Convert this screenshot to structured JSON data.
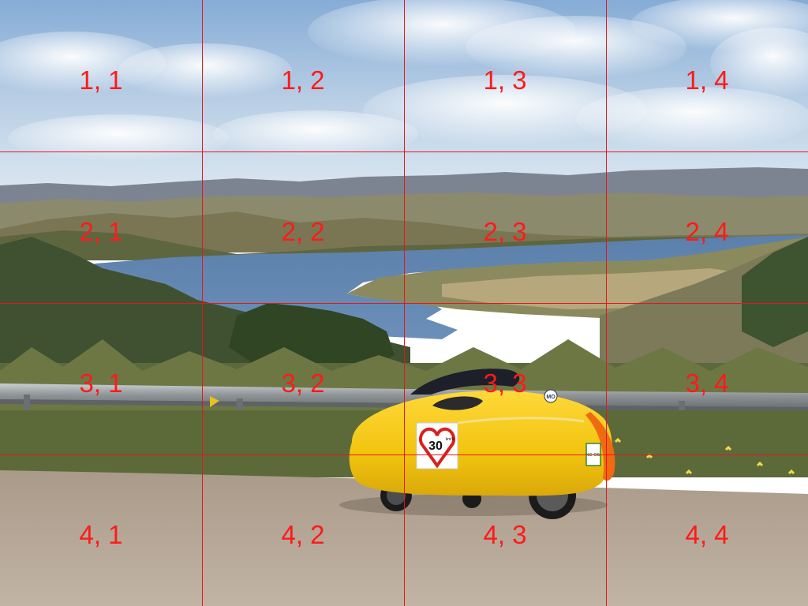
{
  "scene": {
    "description_icons": [
      "sky",
      "clouds",
      "distant-hills",
      "lake",
      "shrubland",
      "guardrail",
      "velomobile",
      "gravel-road"
    ],
    "colors": {
      "sky_top": "#8fb3d9",
      "sky_bottom": "#dfe9f2",
      "lake": "#5d82ad",
      "hills_far": "#7b8290",
      "vegetation": "#4a5a32",
      "velomobile_body": "#f2c40f",
      "velomobile_nose": "#f06a12",
      "velomobile_canopy": "#1d1f2a",
      "road": "#b3a393",
      "grid": "#e8151c",
      "labels": "#ff1a1a"
    },
    "badge": {
      "number": "30",
      "unit": "km/h"
    },
    "sticker_logo": "NO OIL",
    "sticker_round": "MO"
  },
  "grid": {
    "labels": [
      [
        "1, 1",
        "1, 2",
        "1, 3",
        "1, 4"
      ],
      [
        "2, 1",
        "2, 2",
        "2, 3",
        "2, 4"
      ],
      [
        "3, 1",
        "3, 2",
        "3, 3",
        "3, 4"
      ],
      [
        "4, 1",
        "4, 2",
        "4, 3",
        "4, 4"
      ]
    ]
  }
}
